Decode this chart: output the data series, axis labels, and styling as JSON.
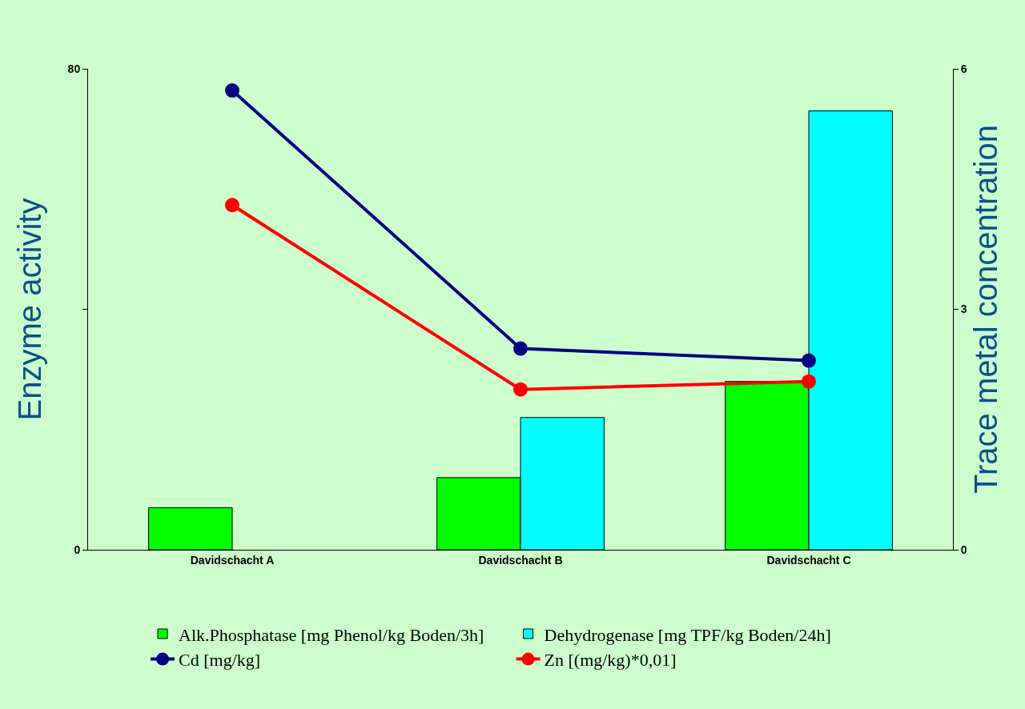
{
  "chart_data": {
    "type": "bar",
    "categories": [
      "Davidschacht A",
      "Davidschacht B",
      "Davidschacht C"
    ],
    "ylabel": "Enzyme activity",
    "y2label": "Trace metal concentration",
    "ylim": [
      0,
      80
    ],
    "yticks": [
      0,
      {
        "value": 40,
        "label": null
      },
      80
    ],
    "y2lim": [
      0,
      6
    ],
    "y2ticks": [
      0,
      3,
      6
    ],
    "series": [
      {
        "name": "Alk.Phosphatase [mg Phenol/kg Boden/3h]",
        "color": "#00ff00",
        "values": [
          7,
          12,
          28
        ]
      },
      {
        "name": "Dehydrogenase [mg TPF/kg Boden/24h]",
        "color": "#00ffff",
        "values": [
          null,
          22,
          73
        ]
      },
      {
        "name": "Cd [mg/kg]",
        "type": "line",
        "axis": "y2",
        "color": "#000080",
        "values": [
          5.73,
          2.51,
          2.36
        ]
      },
      {
        "name": "Zn [(mg/kg)*0,01]",
        "type": "line",
        "axis": "y2",
        "color": "#ff0000",
        "values": [
          4.3,
          2.0,
          2.1
        ]
      }
    ],
    "marker": "circle",
    "line_style": "solid",
    "grid": false,
    "legend": "bottom"
  }
}
